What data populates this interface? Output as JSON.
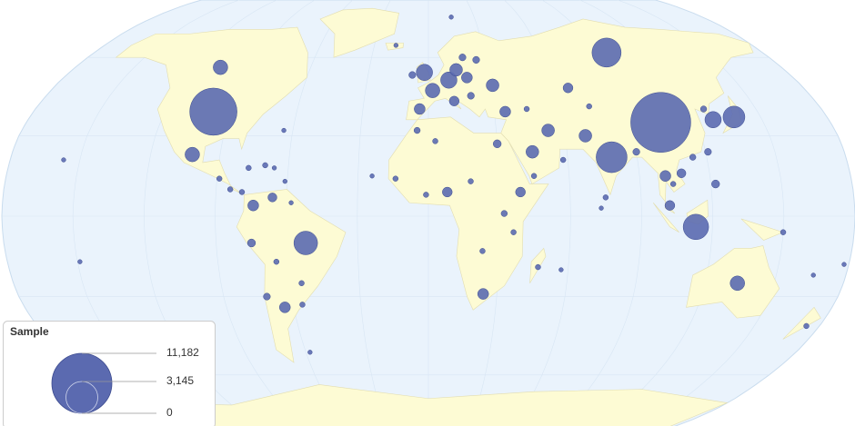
{
  "chart_data": {
    "type": "bubble_map",
    "color": "#5b6ab0",
    "legend": {
      "title": "Sample",
      "sizes": [
        {
          "value": 11182,
          "label": "11,182"
        },
        {
          "value": 3145,
          "label": "3,145"
        },
        {
          "value": 0,
          "label": "0"
        }
      ]
    },
    "points": [
      {
        "lon": 104,
        "lat": 35,
        "value": 11182
      },
      {
        "lon": -98,
        "lat": 39,
        "value": 6940
      },
      {
        "lon": 79,
        "lat": 22,
        "value": 2970
      },
      {
        "lon": 96,
        "lat": 62,
        "value": 2630
      },
      {
        "lon": 113,
        "lat": -4,
        "value": 2010
      },
      {
        "lon": -52,
        "lat": -10,
        "value": 1735
      },
      {
        "lon": 138,
        "lat": 37,
        "value": 1480
      },
      {
        "lon": 128,
        "lat": 36,
        "value": 830
      },
      {
        "lon": -2,
        "lat": 54,
        "value": 830
      },
      {
        "lon": 10,
        "lat": 51,
        "value": 830
      },
      {
        "lon": 2,
        "lat": 47,
        "value": 660
      },
      {
        "lon": -102,
        "lat": 23,
        "value": 660
      },
      {
        "lon": -106,
        "lat": 56,
        "value": 660
      },
      {
        "lon": 134,
        "lat": -25,
        "value": 660
      },
      {
        "lon": 31,
        "lat": 49,
        "value": 505
      },
      {
        "lon": 14,
        "lat": 55,
        "value": 505
      },
      {
        "lon": 53,
        "lat": 32,
        "value": 505
      },
      {
        "lon": 69,
        "lat": 30,
        "value": 505
      },
      {
        "lon": 45,
        "lat": 24,
        "value": 505
      },
      {
        "lon": -4,
        "lat": 40,
        "value": 370
      },
      {
        "lon": 35,
        "lat": 39,
        "value": 370
      },
      {
        "lon": 19,
        "lat": 52,
        "value": 370
      },
      {
        "lon": 101,
        "lat": 15,
        "value": 370
      },
      {
        "lon": -74,
        "lat": 4,
        "value": 370
      },
      {
        "lon": -64,
        "lat": -34,
        "value": 370
      },
      {
        "lon": 24,
        "lat": -29,
        "value": 370
      },
      {
        "lon": 8,
        "lat": 9,
        "value": 300
      },
      {
        "lon": 39,
        "lat": 9,
        "value": 300
      },
      {
        "lon": 67,
        "lat": 48,
        "value": 300
      },
      {
        "lon": 102,
        "lat": 4,
        "value": 300
      },
      {
        "lon": -66,
        "lat": 7,
        "value": 250
      },
      {
        "lon": -75,
        "lat": -10,
        "value": 200
      },
      {
        "lon": 12,
        "lat": 43,
        "value": 300
      },
      {
        "lon": 108,
        "lat": 16,
        "value": 250
      },
      {
        "lon": 30,
        "lat": 27,
        "value": 200
      },
      {
        "lon": 122,
        "lat": 12,
        "value": 200
      },
      {
        "lon": 25,
        "lat": 59,
        "value": 150
      },
      {
        "lon": 18,
        "lat": 60,
        "value": 150
      },
      {
        "lon": 20,
        "lat": 45,
        "value": 150
      },
      {
        "lon": -8,
        "lat": 53,
        "value": 150
      },
      {
        "lon": 90,
        "lat": 24,
        "value": 150
      },
      {
        "lon": 126,
        "lat": 40,
        "value": 120
      },
      {
        "lon": 174,
        "lat": -41,
        "value": 90
      },
      {
        "lon": -71,
        "lat": -30,
        "value": 150
      },
      {
        "lon": 32,
        "lat": 1,
        "value": 120
      },
      {
        "lon": 18,
        "lat": 13,
        "value": 90
      },
      {
        "lon": -5,
        "lat": 32,
        "value": 120
      },
      {
        "lon": 3,
        "lat": 28,
        "value": 90
      },
      {
        "lon": 36,
        "lat": -6,
        "value": 90
      },
      {
        "lon": 47,
        "lat": -19,
        "value": 90
      },
      {
        "lon": 23,
        "lat": -13,
        "value": 90
      },
      {
        "lon": -1,
        "lat": 8,
        "value": 90
      },
      {
        "lon": -14,
        "lat": 14,
        "value": 90
      },
      {
        "lon": 45,
        "lat": 15,
        "value": 90
      },
      {
        "lon": 58,
        "lat": 21,
        "value": 90
      },
      {
        "lon": 75,
        "lat": 7,
        "value": 90
      },
      {
        "lon": 150,
        "lat": -6,
        "value": 90
      },
      {
        "lon": 178,
        "lat": -18,
        "value": 60
      },
      {
        "lon": -157,
        "lat": 21,
        "value": 60
      },
      {
        "lon": -149,
        "lat": -17,
        "value": 60
      },
      {
        "lon": -77,
        "lat": 18,
        "value": 90
      },
      {
        "lon": -70,
        "lat": 19,
        "value": 90
      },
      {
        "lon": -66,
        "lat": 18,
        "value": 60
      },
      {
        "lon": -61,
        "lat": 13,
        "value": 60
      },
      {
        "lon": -84,
        "lat": 10,
        "value": 90
      },
      {
        "lon": -89,
        "lat": 14,
        "value": 90
      },
      {
        "lon": -79,
        "lat": 9,
        "value": 90
      },
      {
        "lon": -58,
        "lat": 5,
        "value": 60
      },
      {
        "lon": -55,
        "lat": -25,
        "value": 90
      },
      {
        "lon": -65,
        "lat": -17,
        "value": 90
      },
      {
        "lon": -56,
        "lat": -33,
        "value": 90
      },
      {
        "lon": -64,
        "lat": 32,
        "value": 60
      },
      {
        "lon": -18,
        "lat": 65,
        "value": 60
      },
      {
        "lon": 15,
        "lat": 78,
        "value": 60
      },
      {
        "lon": -24,
        "lat": 15,
        "value": 60
      },
      {
        "lon": 57,
        "lat": -20,
        "value": 60
      },
      {
        "lon": 73,
        "lat": 3,
        "value": 60
      },
      {
        "lon": 166,
        "lat": -22,
        "value": 60
      },
      {
        "lon": -58,
        "lat": -51,
        "value": 60
      },
      {
        "lon": 45,
        "lat": 40,
        "value": 90
      },
      {
        "lon": 74,
        "lat": 41,
        "value": 90
      },
      {
        "lon": 114,
        "lat": 22,
        "value": 120
      },
      {
        "lon": 121,
        "lat": 24,
        "value": 150
      },
      {
        "lon": 104,
        "lat": 12,
        "value": 90
      }
    ]
  }
}
